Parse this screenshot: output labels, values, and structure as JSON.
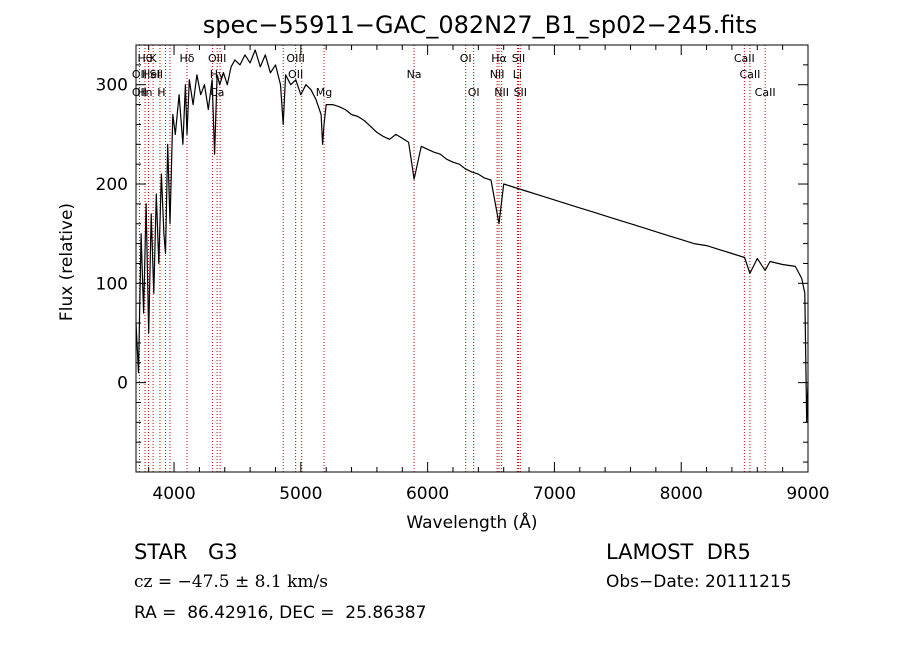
{
  "chart_data": {
    "type": "line",
    "title": "spec−55911−GAC_082N27_B1_sp02−245.fits",
    "xlabel": "Wavelength (Å)",
    "ylabel": "Flux (relative)",
    "xlim": [
      3700,
      9000
    ],
    "ylim": [
      -90,
      340
    ],
    "grid": false,
    "x_ticks": [
      4000,
      5000,
      6000,
      7000,
      8000,
      9000
    ],
    "y_ticks": [
      0,
      100,
      200,
      300
    ],
    "x_minor_step": 200,
    "y_minor_step": 20,
    "series": [
      {
        "color": "#000000",
        "x": [
          3700,
          3720,
          3740,
          3760,
          3780,
          3800,
          3820,
          3840,
          3860,
          3880,
          3900,
          3920,
          3933,
          3950,
          3968,
          3990,
          4010,
          4040,
          4070,
          4090,
          4102,
          4120,
          4150,
          4180,
          4210,
          4240,
          4270,
          4300,
          4320,
          4340,
          4360,
          4390,
          4420,
          4450,
          4480,
          4520,
          4560,
          4600,
          4640,
          4680,
          4720,
          4760,
          4800,
          4840,
          4861,
          4880,
          4920,
          4960,
          5000,
          5040,
          5080,
          5120,
          5160,
          5172,
          5183,
          5200,
          5250,
          5300,
          5350,
          5400,
          5450,
          5500,
          5550,
          5600,
          5650,
          5700,
          5750,
          5800,
          5850,
          5893,
          5950,
          6000,
          6050,
          6100,
          6150,
          6200,
          6250,
          6300,
          6350,
          6400,
          6450,
          6500,
          6563,
          6600,
          6650,
          6700,
          6750,
          6800,
          6900,
          7000,
          7100,
          7200,
          7300,
          7400,
          7500,
          7600,
          7700,
          7800,
          7900,
          8000,
          8100,
          8200,
          8300,
          8400,
          8500,
          8542,
          8600,
          8662,
          8700,
          8800,
          8900,
          8950,
          8975,
          8990,
          9000
        ],
        "y": [
          60,
          10,
          150,
          70,
          180,
          50,
          170,
          90,
          190,
          120,
          210,
          150,
          130,
          240,
          160,
          270,
          250,
          290,
          240,
          300,
          250,
          305,
          280,
          310,
          290,
          300,
          275,
          305,
          230,
          310,
          300,
          312,
          300,
          318,
          325,
          320,
          330,
          322,
          335,
          318,
          330,
          312,
          320,
          300,
          260,
          310,
          300,
          305,
          290,
          300,
          295,
          285,
          270,
          240,
          260,
          280,
          280,
          278,
          275,
          270,
          268,
          264,
          258,
          252,
          248,
          245,
          250,
          246,
          242,
          205,
          238,
          235,
          232,
          230,
          225,
          222,
          220,
          215,
          212,
          210,
          206,
          204,
          160,
          200,
          198,
          196,
          194,
          192,
          188,
          184,
          180,
          176,
          172,
          168,
          164,
          160,
          156,
          152,
          148,
          144,
          140,
          138,
          134,
          130,
          126,
          110,
          125,
          113,
          122,
          119,
          117,
          105,
          90,
          -40,
          0
        ]
      }
    ],
    "line_markers": [
      {
        "row": 0,
        "w": 3771,
        "label": "Hθ"
      },
      {
        "row": 0,
        "w": 3835,
        "label": "K"
      },
      {
        "row": 0,
        "w": 4102,
        "label": "Hδ"
      },
      {
        "row": 0,
        "w": 4340,
        "label": "OIII"
      },
      {
        "row": 0,
        "w": 4959,
        "label": "OIII"
      },
      {
        "row": 0,
        "w": 6300,
        "label": "OI"
      },
      {
        "row": 0,
        "w": 6563,
        "label": "Hα"
      },
      {
        "row": 0,
        "w": 6717,
        "label": "SII"
      },
      {
        "row": 0,
        "w": 8498,
        "label": "CaII"
      },
      {
        "row": 1,
        "w": 3727,
        "label": "OII"
      },
      {
        "row": 1,
        "w": 3820,
        "label": "HeI"
      },
      {
        "row": 1,
        "w": 3860,
        "label": "SII"
      },
      {
        "row": 1,
        "w": 4340,
        "label": "Hγ"
      },
      {
        "row": 1,
        "w": 4959,
        "label": "OII"
      },
      {
        "row": 1,
        "w": 5893,
        "label": "Na"
      },
      {
        "row": 1,
        "w": 6548,
        "label": "NII"
      },
      {
        "row": 1,
        "w": 6708,
        "label": "Li"
      },
      {
        "row": 1,
        "w": 8542,
        "label": "CaII"
      },
      {
        "row": 2,
        "w": 3727,
        "label": "OII"
      },
      {
        "row": 2,
        "w": 3770,
        "label": "Hn"
      },
      {
        "row": 2,
        "w": 3900,
        "label": "H"
      },
      {
        "row": 2,
        "w": 4340,
        "label": "Ca"
      },
      {
        "row": 2,
        "w": 5183,
        "label": "Mg"
      },
      {
        "row": 2,
        "w": 6363,
        "label": "OI"
      },
      {
        "row": 2,
        "w": 6584,
        "label": "NII"
      },
      {
        "row": 2,
        "w": 6731,
        "label": "SII"
      },
      {
        "row": 2,
        "w": 8662,
        "label": "CaII"
      }
    ],
    "marker_lines": [
      3727,
      3771,
      3798,
      3835,
      3889,
      3933,
      3968,
      4102,
      4304,
      4340,
      4363,
      4861,
      4959,
      5007,
      5183,
      5893,
      6300,
      6363,
      6548,
      6563,
      6584,
      6708,
      6717,
      6731,
      8498,
      8542,
      8662
    ],
    "marker_color": "#cc0000"
  },
  "info": {
    "object_type": "STAR",
    "subclass": "G3",
    "survey": "LAMOST  DR5",
    "redshift": "cz = −47.5 ± 8.1 km/s",
    "obs_date": "Obs−Date: 20111215",
    "coords": "RA =  86.42916, DEC =  25.86387"
  }
}
